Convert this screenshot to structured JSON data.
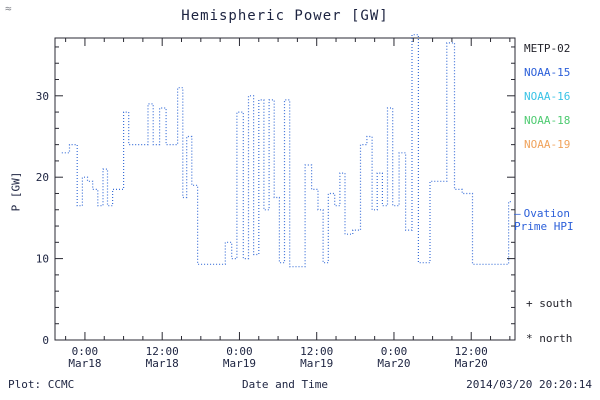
{
  "decor": {
    "corner": "≈"
  },
  "footer": {
    "credit": "Plot: CCMC",
    "timestamp": "2014/03/20 20:20:14"
  },
  "annotations": {
    "ovation_dash": "—",
    "ovation_line1": "Ovation",
    "ovation_line2": "Prime HPI",
    "south": "+ south",
    "north": "* north"
  },
  "chart_data": {
    "type": "line",
    "title": "Hemispheric Power [GW]",
    "xlabel": "Date and Time",
    "ylabel": "P [GW]",
    "ylim": [
      0,
      37.1
    ],
    "x_hours_range": [
      -4.65,
      66.8
    ],
    "grid": false,
    "legend_position": "right-outside",
    "line_color": "#3a6fd8",
    "axis_color": "#2a2a33",
    "y_ticks": [
      0,
      10,
      20,
      30
    ],
    "y_minor_step": 2,
    "x_minor_step": 3,
    "x_ticks": [
      {
        "t": 0,
        "line1": "0:00",
        "line2": "Mar18"
      },
      {
        "t": 12,
        "line1": "12:00",
        "line2": "Mar18"
      },
      {
        "t": 24,
        "line1": "0:00",
        "line2": "Mar19"
      },
      {
        "t": 36,
        "line1": "12:00",
        "line2": "Mar19"
      },
      {
        "t": 48,
        "line1": "0:00",
        "line2": "Mar20"
      },
      {
        "t": 60,
        "line1": "12:00",
        "line2": "Mar20"
      }
    ],
    "legend": [
      {
        "label": "METP-02",
        "color": "#23232b"
      },
      {
        "label": "NOAA-15",
        "color": "#2b5fd9"
      },
      {
        "label": "NOAA-16",
        "color": "#39c3e6"
      },
      {
        "label": "NOAA-18",
        "color": "#4ecb71"
      },
      {
        "label": "NOAA-19",
        "color": "#f0a35c"
      }
    ],
    "series": [
      {
        "name": "Ovation Prime HPI (NOAA-15)",
        "style": "dotted-step",
        "color": "#3a6fd8",
        "points": [
          [
            -3.6,
            23
          ],
          [
            -2.4,
            24
          ],
          [
            -1.2,
            16.5
          ],
          [
            -0.4,
            20
          ],
          [
            0.4,
            19.5
          ],
          [
            1.2,
            18.5
          ],
          [
            2.0,
            16.5
          ],
          [
            2.8,
            21
          ],
          [
            3.5,
            16.5
          ],
          [
            4.3,
            18.5
          ],
          [
            6.0,
            28
          ],
          [
            6.8,
            24
          ],
          [
            8.2,
            24
          ],
          [
            9.8,
            29
          ],
          [
            10.6,
            24
          ],
          [
            11.6,
            28.5
          ],
          [
            12.6,
            24
          ],
          [
            13.8,
            24
          ],
          [
            14.4,
            31
          ],
          [
            15.2,
            17.5
          ],
          [
            15.8,
            25
          ],
          [
            16.6,
            19
          ],
          [
            17.5,
            9.3
          ],
          [
            19.0,
            9.3
          ],
          [
            20.6,
            9.3
          ],
          [
            21.8,
            12
          ],
          [
            22.8,
            10
          ],
          [
            23.6,
            28
          ],
          [
            24.6,
            10
          ],
          [
            25.4,
            30
          ],
          [
            26.2,
            10.5
          ],
          [
            27.0,
            29.5
          ],
          [
            27.8,
            16
          ],
          [
            28.6,
            29.5
          ],
          [
            29.4,
            17.5
          ],
          [
            30.2,
            9.5
          ],
          [
            31.0,
            29.5
          ],
          [
            31.8,
            9
          ],
          [
            33.4,
            9
          ],
          [
            34.2,
            21.5
          ],
          [
            35.2,
            18.5
          ],
          [
            36.2,
            16
          ],
          [
            37.0,
            9.5
          ],
          [
            37.8,
            18
          ],
          [
            38.8,
            16.5
          ],
          [
            39.6,
            20.5
          ],
          [
            40.4,
            13
          ],
          [
            41.6,
            13.5
          ],
          [
            42.8,
            24
          ],
          [
            43.8,
            25
          ],
          [
            44.6,
            16
          ],
          [
            45.4,
            20.5
          ],
          [
            46.2,
            16.5
          ],
          [
            47.0,
            28.5
          ],
          [
            47.8,
            16.5
          ],
          [
            48.8,
            23
          ],
          [
            49.8,
            13.5
          ],
          [
            50.8,
            37.5
          ],
          [
            51.8,
            9.5
          ],
          [
            52.8,
            9.5
          ],
          [
            53.6,
            19.5
          ],
          [
            55.0,
            19.5
          ],
          [
            56.2,
            36.5
          ],
          [
            57.4,
            18.5
          ],
          [
            58.6,
            18
          ],
          [
            60.2,
            9.3
          ],
          [
            62.0,
            9.3
          ],
          [
            64.0,
            9.3
          ],
          [
            65.4,
            9.3
          ],
          [
            65.8,
            17
          ],
          [
            66.3,
            17
          ]
        ]
      }
    ]
  }
}
